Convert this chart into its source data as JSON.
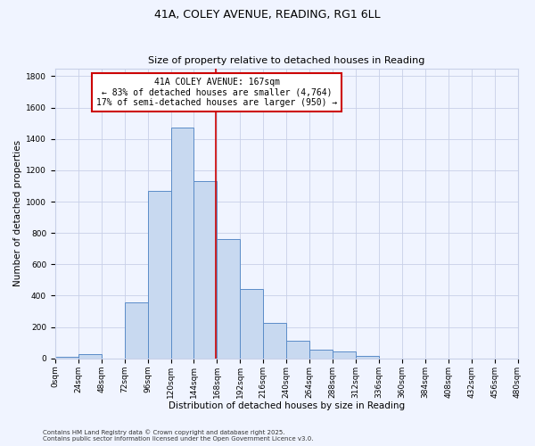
{
  "title": "41A, COLEY AVENUE, READING, RG1 6LL",
  "subtitle": "Size of property relative to detached houses in Reading",
  "xlabel": "Distribution of detached houses by size in Reading",
  "ylabel": "Number of detached properties",
  "bin_edges": [
    0,
    24,
    48,
    72,
    96,
    120,
    144,
    168,
    192,
    216,
    240,
    264,
    288,
    312,
    336,
    360,
    384,
    408,
    432,
    456,
    480
  ],
  "bar_heights": [
    10,
    30,
    0,
    360,
    1070,
    1470,
    1130,
    760,
    440,
    225,
    115,
    55,
    45,
    15,
    0,
    0,
    0,
    0,
    0,
    0
  ],
  "bar_color": "#c8d9f0",
  "bar_edge_color": "#5b8cc8",
  "property_line_x": 167,
  "annotation_title": "41A COLEY AVENUE: 167sqm",
  "annotation_line1": "← 83% of detached houses are smaller (4,764)",
  "annotation_line2": "17% of semi-detached houses are larger (950) →",
  "annotation_box_color": "#ffffff",
  "annotation_box_edge": "#cc0000",
  "property_line_color": "#cc0000",
  "ylim": [
    0,
    1850
  ],
  "yticks": [
    0,
    200,
    400,
    600,
    800,
    1000,
    1200,
    1400,
    1600,
    1800
  ],
  "xtick_labels": [
    "0sqm",
    "24sqm",
    "48sqm",
    "72sqm",
    "96sqm",
    "120sqm",
    "144sqm",
    "168sqm",
    "192sqm",
    "216sqm",
    "240sqm",
    "264sqm",
    "288sqm",
    "312sqm",
    "336sqm",
    "360sqm",
    "384sqm",
    "408sqm",
    "432sqm",
    "456sqm",
    "480sqm"
  ],
  "footer1": "Contains HM Land Registry data © Crown copyright and database right 2025.",
  "footer2": "Contains public sector information licensed under the Open Government Licence v3.0.",
  "bg_color": "#f0f4ff",
  "grid_color": "#c8d0e8",
  "title_fontsize": 9,
  "subtitle_fontsize": 8,
  "label_fontsize": 7.5,
  "tick_fontsize": 6.5,
  "annotation_fontsize": 7,
  "footer_fontsize": 5
}
